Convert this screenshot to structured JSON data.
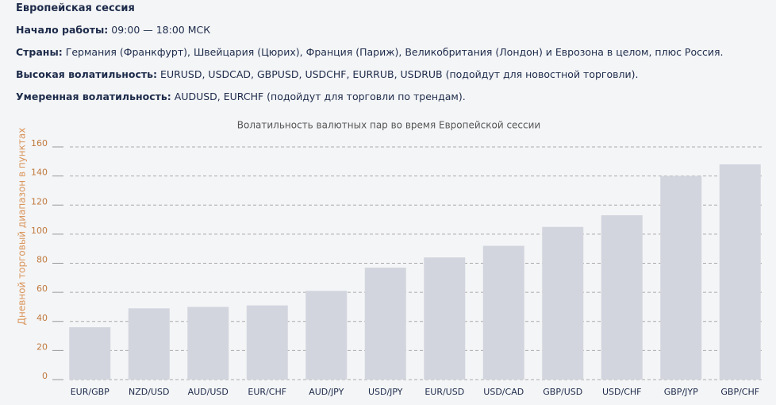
{
  "header": {
    "title": "Европейская сессия",
    "lines": [
      {
        "label": "Начало работы:",
        "text": "09:00 — 18:00 МСК"
      },
      {
        "label": "Страны:",
        "text": "Германия (Франкфурт), Швейцария (Цюрих), Франция (Париж), Великобритания (Лондон) и Еврозона в целом, плюс Россия."
      },
      {
        "label": "Высокая волатильность:",
        "text": "EURUSD, USDCAD, GBPUSD, USDCHF, EURRUB, USDRUB (подойдут для новостной торговли)."
      },
      {
        "label": "Умеренная волатильность:",
        "text": "AUDUSD, EURCHF (подойдут для торговли по трендам)."
      }
    ]
  },
  "chart_data": {
    "type": "bar",
    "title": "Волатильность валютных пар во время Европейской сессии",
    "y_label": "Дневной торговый диапазон в пунктах",
    "categories": [
      "EUR/GBP",
      "NZD/USD",
      "AUD/USD",
      "EUR/CHF",
      "AUD/JPY",
      "USD/JPY",
      "EUR/USD",
      "USD/CAD",
      "GBP/USD",
      "USD/CHF",
      "GBP/JYP",
      "GBP/CHF"
    ],
    "values": [
      36,
      49,
      50,
      51,
      61,
      77,
      84,
      92,
      105,
      113,
      140,
      148
    ],
    "color": "#d3d5de",
    "ylim": [
      0,
      160
    ],
    "yticks": [
      0,
      20,
      40,
      60,
      80,
      100,
      120,
      140,
      160
    ],
    "grid": true
  }
}
